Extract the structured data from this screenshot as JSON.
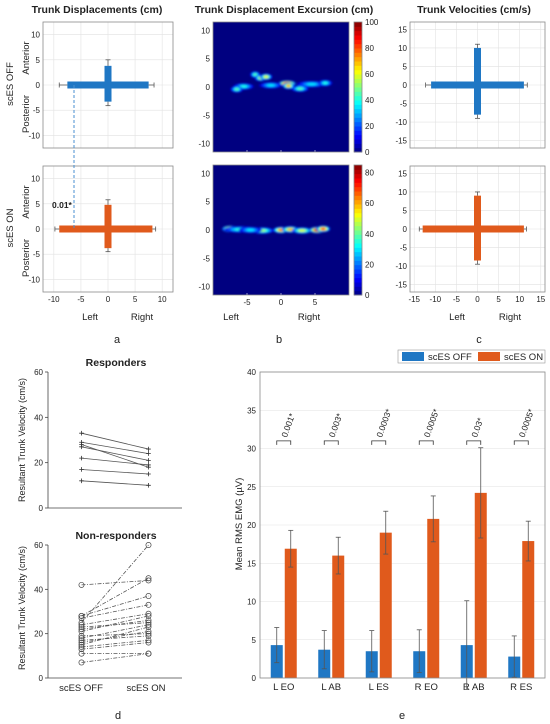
{
  "row_labels": {
    "off": "scES OFF",
    "on": "scES ON"
  },
  "chart_data": [
    {
      "id": "a",
      "type": "errorbar-cross",
      "title": "Trunk Displacements (cm)",
      "panel_label": "a",
      "xlabel_left": "Left",
      "xlabel_right": "Right",
      "ylabel_top": "Anterior",
      "ylabel_bottom": "Posterior",
      "xlim": [
        -12,
        12
      ],
      "ylim": [
        -12.5,
        12.5
      ],
      "xticks": [
        -10,
        -5,
        0,
        5,
        10
      ],
      "yticks": [
        -10,
        -5,
        0,
        5,
        10
      ],
      "annotation": "0.01*",
      "series": [
        {
          "name": "scES OFF",
          "color": "#1f77c4",
          "left": -7.5,
          "right": 7.5,
          "ant": 3.8,
          "post": -3.3,
          "err_left": 1.5,
          "err_right": 1.0,
          "err_ant": 1.2,
          "err_post": 0.8
        },
        {
          "name": "scES ON",
          "color": "#e05a1c",
          "left": -9.0,
          "right": 8.2,
          "ant": 4.8,
          "post": -3.8,
          "err_left": 0.8,
          "err_right": 0.6,
          "err_ant": 1.0,
          "err_post": 0.7
        }
      ]
    },
    {
      "id": "b",
      "type": "heatmap",
      "title": "Trunk Displacement Excursion (cm)",
      "panel_label": "b",
      "xlabel_left": "Left",
      "xlabel_right": "Right",
      "xlim": [
        -10,
        10
      ],
      "ylim": [
        -11.5,
        11.5
      ],
      "xticks": [
        -5,
        0,
        5
      ],
      "yticks": [
        -10,
        -5,
        0,
        5,
        10
      ],
      "colormap": "jet",
      "maps": [
        {
          "name": "scES OFF",
          "clim": [
            0,
            100
          ],
          "cticks": [
            0,
            20,
            40,
            60,
            80,
            100
          ],
          "blobs": [
            [
              -3.8,
              2.2,
              0.35,
              45
            ],
            [
              -3.0,
              1.6,
              0.45,
              55
            ],
            [
              -2.2,
              1.8,
              0.5,
              60
            ],
            [
              0.9,
              0.6,
              0.8,
              95
            ],
            [
              1.1,
              0.2,
              0.45,
              70
            ],
            [
              -1.5,
              0.3,
              1.2,
              35
            ],
            [
              -5.5,
              0.1,
              1.0,
              40
            ],
            [
              4.5,
              0.5,
              1.6,
              35
            ],
            [
              2.8,
              -0.3,
              0.8,
              45
            ],
            [
              -6.5,
              -0.4,
              0.5,
              45
            ],
            [
              6.5,
              0.7,
              0.6,
              40
            ]
          ]
        },
        {
          "name": "scES ON",
          "clim": [
            0,
            85
          ],
          "cticks": [
            0,
            20,
            40,
            60,
            80
          ],
          "blobs": [
            [
              -7.5,
              0.2,
              0.7,
              80
            ],
            [
              -6.0,
              0.1,
              1.8,
              35
            ],
            [
              -2.8,
              -0.1,
              1.2,
              45
            ],
            [
              0.0,
              0.0,
              0.7,
              65
            ],
            [
              1.4,
              0.1,
              0.8,
              60
            ],
            [
              3.1,
              -0.1,
              1.0,
              50
            ],
            [
              5.3,
              0.0,
              0.7,
              80
            ],
            [
              6.2,
              0.2,
              0.6,
              70
            ],
            [
              -4.5,
              0.0,
              1.2,
              30
            ]
          ]
        }
      ]
    },
    {
      "id": "c",
      "type": "errorbar-cross",
      "title": "Trunk Velocities (cm/s)",
      "panel_label": "c",
      "xlabel_left": "Left",
      "xlabel_right": "Right",
      "xlim": [
        -16,
        16
      ],
      "ylim": [
        -17,
        17
      ],
      "xticks": [
        -15,
        -10,
        -5,
        0,
        5,
        10,
        15
      ],
      "yticks": [
        -15,
        -10,
        -5,
        0,
        5,
        10,
        15
      ],
      "series": [
        {
          "name": "scES OFF",
          "color": "#1f77c4",
          "left": -11.0,
          "right": 11.0,
          "ant": 10.0,
          "post": -8.0,
          "err_left": 1.3,
          "err_right": 0.8,
          "err_ant": 1.0,
          "err_post": 1.0
        },
        {
          "name": "scES ON",
          "color": "#e05a1c",
          "left": -13.0,
          "right": 11.0,
          "ant": 9.0,
          "post": -8.5,
          "err_left": 0.8,
          "err_right": 0.6,
          "err_ant": 1.0,
          "err_post": 1.0
        }
      ]
    },
    {
      "id": "d",
      "type": "paired-line",
      "panel_label": "d",
      "categories": [
        "scES OFF",
        "scES ON"
      ],
      "ylabel": "Resultant Trunk Velocity (cm/s)",
      "subplots": [
        {
          "title": "Responders",
          "ylim": [
            0,
            60
          ],
          "yticks": [
            0,
            20,
            40,
            60
          ],
          "pairs": [
            [
              33,
              26
            ],
            [
              29,
              24
            ],
            [
              28,
              18
            ],
            [
              27,
              21
            ],
            [
              22,
              19
            ],
            [
              17,
              15
            ],
            [
              12,
              10
            ]
          ]
        },
        {
          "title": "Non-responders",
          "ylim": [
            0,
            60
          ],
          "yticks": [
            0,
            20,
            40,
            60
          ],
          "pairs": [
            [
              7,
              11
            ],
            [
              11,
              11
            ],
            [
              14,
              17
            ],
            [
              17,
              19
            ],
            [
              19,
              20
            ],
            [
              23,
              25
            ],
            [
              16,
              21
            ],
            [
              22,
              26
            ],
            [
              24,
              29
            ],
            [
              18,
              24
            ],
            [
              13,
              16
            ],
            [
              27,
              33
            ],
            [
              21,
              28
            ],
            [
              28,
              37
            ],
            [
              28,
              45
            ],
            [
              42,
              44
            ],
            [
              15,
              23
            ],
            [
              25,
              60
            ]
          ]
        }
      ]
    },
    {
      "id": "e",
      "type": "bar",
      "panel_label": "e",
      "categories": [
        "L EO",
        "L AB",
        "L ES",
        "R EO",
        "R AB",
        "R ES"
      ],
      "ylabel": "Mean RMS EMG (µV)",
      "ylim": [
        0,
        40
      ],
      "yticks": [
        0,
        5,
        10,
        15,
        20,
        25,
        30,
        35,
        40
      ],
      "legend_position": "top",
      "series": [
        {
          "name": "scES OFF",
          "color": "#1f77c4",
          "values": [
            4.3,
            3.7,
            3.5,
            3.5,
            4.3,
            2.8
          ],
          "errors": [
            2.3,
            2.5,
            2.7,
            2.8,
            5.8,
            2.7
          ]
        },
        {
          "name": "scES ON",
          "color": "#e05a1c",
          "values": [
            16.9,
            16.0,
            19.0,
            20.8,
            24.2,
            17.9
          ],
          "errors": [
            2.4,
            2.4,
            2.8,
            3.0,
            5.9,
            2.6
          ]
        }
      ],
      "pvalues": [
        "0.001*",
        "0.003*",
        "0.0003*",
        "0.0005*",
        "0.03*",
        "0.0005*"
      ]
    }
  ]
}
